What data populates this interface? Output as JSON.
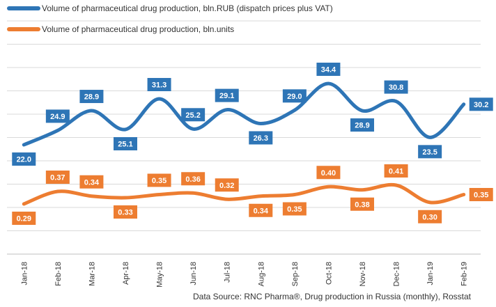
{
  "chart_data": {
    "type": "line",
    "x": [
      "Jan-18",
      "Feb-18",
      "Mar-18",
      "Apr-18",
      "May-18",
      "Jun-18",
      "Jul-18",
      "Aug-18",
      "Sep-18",
      "Oct-18",
      "Nov-18",
      "Dec-18",
      "Jan-19",
      "Feb-19"
    ],
    "series": [
      {
        "name": "Volume of pharmaceutical drug production, bln.RUB (dispatch prices plus VAT)",
        "color": "#2e75b6",
        "values": [
          22.0,
          24.9,
          28.9,
          25.1,
          31.3,
          25.2,
          29.1,
          26.3,
          29.0,
          34.4,
          28.9,
          30.8,
          23.5,
          30.2
        ],
        "labels": [
          "22.0",
          "24.9",
          "28.9",
          "25.1",
          "31.3",
          "25.2",
          "29.1",
          "26.3",
          "29.0",
          "34.4",
          "28.9",
          "30.8",
          "23.5",
          "30.2"
        ]
      },
      {
        "name": "Volume of pharmaceutical drug production, bln.units",
        "color": "#ed7d31",
        "values": [
          0.29,
          0.37,
          0.34,
          0.33,
          0.35,
          0.36,
          0.32,
          0.34,
          0.35,
          0.4,
          0.38,
          0.41,
          0.3,
          0.35
        ],
        "labels": [
          "0.29",
          "0.37",
          "0.34",
          "0.33",
          "0.35",
          "0.36",
          "0.32",
          "0.34",
          "0.35",
          "0.40",
          "0.38",
          "0.41",
          "0.30",
          "0.35"
        ]
      }
    ],
    "grid": true,
    "legend": "top-left"
  },
  "source_text": "Data Source: RNC Pharma®, Drug production in Russia (monthly), Rosstat"
}
